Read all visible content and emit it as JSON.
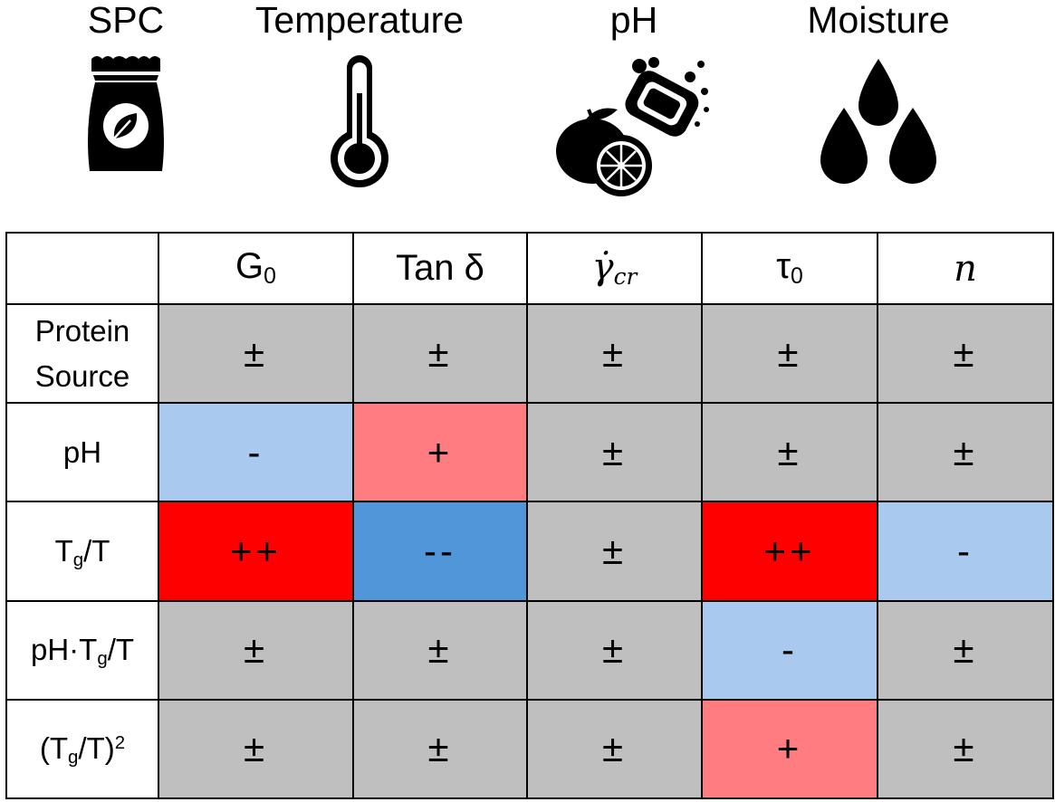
{
  "icons": [
    {
      "label": "SPC",
      "icon": "soy-protein-bag-icon"
    },
    {
      "label": "Temperature",
      "icon": "thermometer-icon"
    },
    {
      "label": "pH",
      "icon": "lemon-soap-icon"
    },
    {
      "label": "Moisture",
      "icon": "water-drops-icon"
    }
  ],
  "table": {
    "columns": [
      {
        "main": "G",
        "sub": "0",
        "italic": false
      },
      {
        "main": "Tan δ",
        "sub": "",
        "italic": false
      },
      {
        "main": "γ̇",
        "sub": "cr",
        "italic": true
      },
      {
        "main": "τ",
        "sub": "0",
        "italic": false
      },
      {
        "main": "n",
        "sub": "",
        "italic": true
      }
    ],
    "rows": [
      {
        "label_line1": "Protein",
        "label_line2": "Source"
      },
      {
        "label": "pH"
      },
      {
        "label_a": "T",
        "label_sub": "g",
        "label_b": "/T"
      },
      {
        "label_a": "pH·T",
        "label_sub": "g",
        "label_b": "/T"
      },
      {
        "label_a": "(T",
        "label_sub": "g",
        "label_b": "/T)",
        "label_sup": "2"
      }
    ],
    "cells": [
      [
        "±",
        "±",
        "±",
        "±",
        "±"
      ],
      [
        "-",
        "+",
        "±",
        "±",
        "±"
      ],
      [
        "++",
        "--",
        "±",
        "++",
        "-"
      ],
      [
        "±",
        "±",
        "±",
        "-",
        "±"
      ],
      [
        "±",
        "±",
        "±",
        "+",
        "±"
      ]
    ],
    "colors": {
      "±": "#bfbfbf",
      "+": "#ff7c80",
      "++": "#ff0000",
      "-": "#a9caee",
      "--": "#5096d9"
    }
  }
}
